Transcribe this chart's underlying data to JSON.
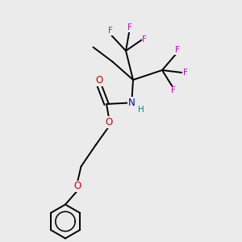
{
  "background_color": "#ebebeb",
  "bond_color": "#000000",
  "N_color": "#0000cc",
  "O_color": "#cc0000",
  "F_color": "#cc00cc",
  "H_color": "#008888",
  "figsize": [
    3.0,
    3.0
  ],
  "dpi": 100,
  "xlim": [
    0,
    10
  ],
  "ylim": [
    0,
    10
  ],
  "lw": 1.4,
  "fs": 8.5,
  "fs_small": 7.5
}
